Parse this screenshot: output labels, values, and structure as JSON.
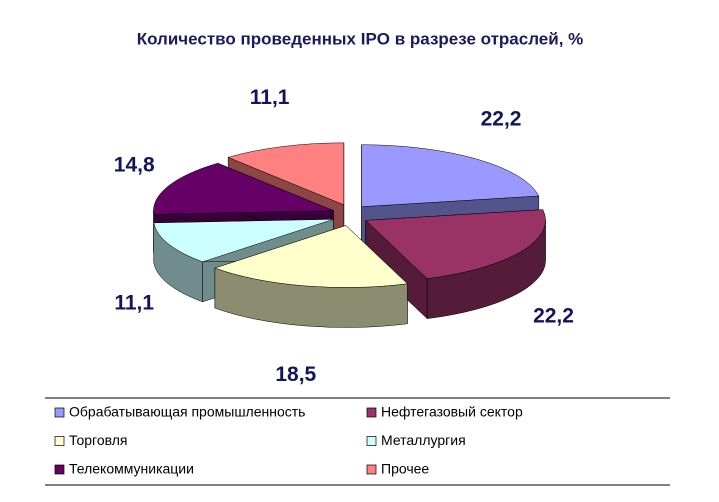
{
  "chart_data": {
    "type": "pie3d",
    "title": "Количество проведенных IPO в разрезе отраслей, %",
    "categories": [
      "Обрабатывающая промышленность",
      "Нефтегазовый сектор",
      "Торговля",
      "Металлургия",
      "Телекоммуникации",
      "Прочее"
    ],
    "values": [
      22.2,
      22.2,
      18.5,
      11.1,
      14.8,
      11.1
    ],
    "value_labels": [
      "22,2",
      "22,2",
      "18,5",
      "11,1",
      "14,8",
      "11,1"
    ],
    "colors": [
      "#9999ff",
      "#993366",
      "#ffffcc",
      "#ccffff",
      "#660066",
      "#ff8080"
    ],
    "legend": "bottom"
  }
}
